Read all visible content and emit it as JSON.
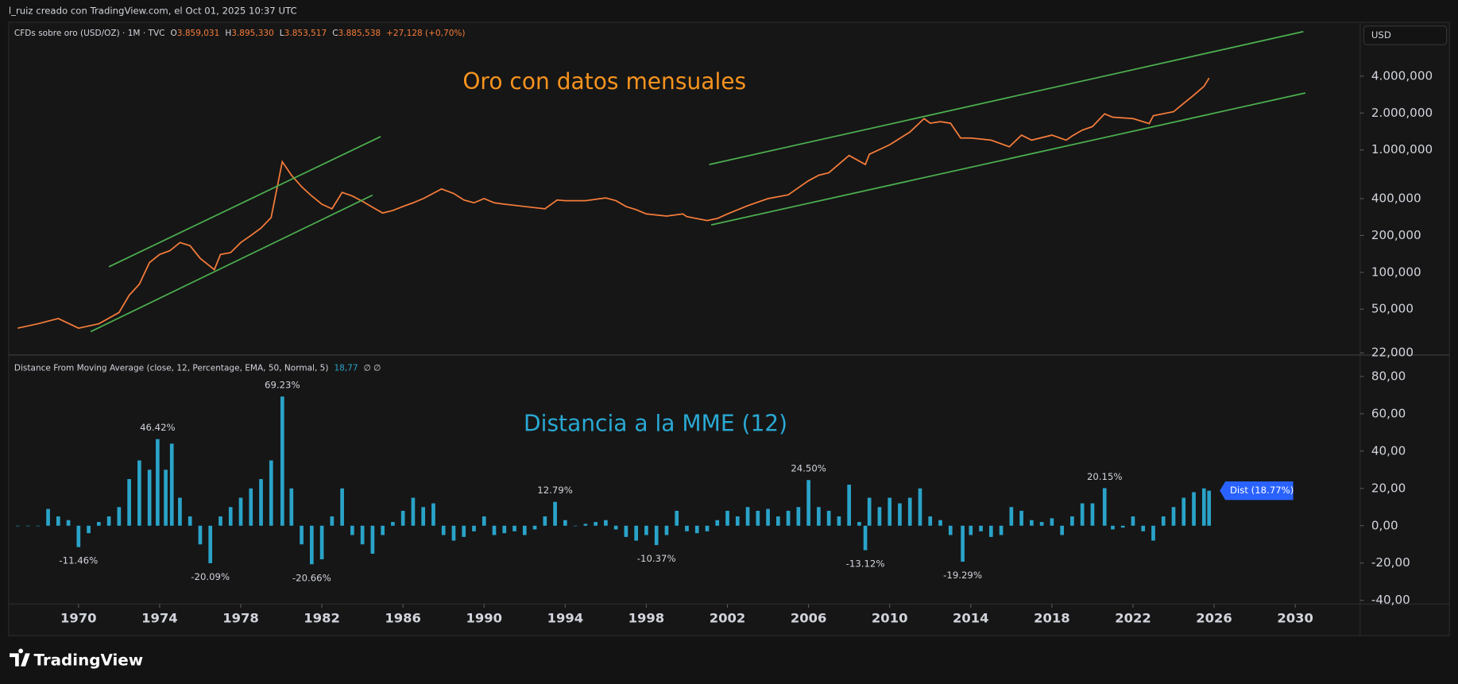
{
  "header": {
    "attribution": "l_ruiz creado con TradingView.com, el Oct 01, 2025 10:37 UTC"
  },
  "footer": {
    "logo": "TradingView"
  },
  "chart_data": [
    {
      "type": "line",
      "title": "Oro con datos mensuales",
      "currency": "USD",
      "log_scale": true,
      "grid": false,
      "legend": {
        "symbol": "CFDs sobre oro (USD/OZ) · 1M · TVC",
        "ohlc": [
          {
            "label": "O",
            "value": "3.859,031"
          },
          {
            "label": "H",
            "value": "3.895,330"
          },
          {
            "label": "L",
            "value": "3.853,517"
          },
          {
            "label": "C",
            "value": "3.885,538"
          }
        ],
        "change": "+27,128 (+0,70%)"
      },
      "xlim": [
        1966.6,
        2033.2
      ],
      "ylim": [
        21.5,
        11400
      ],
      "yticks": [
        {
          "value": 22,
          "label": "22,000"
        },
        {
          "value": 50,
          "label": "50,000"
        },
        {
          "value": 100,
          "label": "100,000"
        },
        {
          "value": 200,
          "label": "200,000"
        },
        {
          "value": 400,
          "label": "400,000"
        },
        {
          "value": 1000,
          "label": "1.000,000"
        },
        {
          "value": 2000,
          "label": "2.000,000"
        },
        {
          "value": 4000,
          "label": "4.000,000"
        }
      ],
      "series": [
        {
          "name": "Oro",
          "color": "#f57c3a",
          "x": [
            1967,
            1968,
            1968.5,
            1969,
            1970,
            1971,
            1972,
            1972.5,
            1973,
            1973.5,
            1974,
            1974.5,
            1975,
            1975.5,
            1976,
            1976.7,
            1977,
            1977.5,
            1978,
            1978.5,
            1979,
            1979.5,
            1980.05,
            1980.5,
            1981,
            1981.5,
            1982,
            1982.5,
            1983,
            1983.5,
            1984,
            1984.5,
            1985,
            1985.5,
            1986,
            1986.5,
            1987,
            1987.9,
            1988.5,
            1989,
            1989.5,
            1990,
            1990.5,
            1991,
            1992,
            1993,
            1993.6,
            1994,
            1995,
            1996,
            1996.5,
            1997,
            1997.5,
            1998,
            1999,
            1999.8,
            2000,
            2001,
            2001.5,
            2002,
            2003,
            2004,
            2005,
            2006,
            2006.5,
            2007,
            2008,
            2008.8,
            2009,
            2010,
            2011,
            2011.7,
            2012,
            2012.5,
            2013,
            2013.5,
            2014,
            2015,
            2015.9,
            2016.5,
            2017,
            2018,
            2018.7,
            2019,
            2019.5,
            2020,
            2020.6,
            2021,
            2022,
            2022.8,
            2023,
            2024,
            2024.5,
            2025,
            2025.5,
            2025.75
          ],
          "values": [
            35,
            38,
            40,
            42,
            35,
            38,
            47,
            65,
            80,
            120,
            140,
            150,
            175,
            165,
            130,
            105,
            140,
            145,
            175,
            200,
            230,
            280,
            800,
            620,
            500,
            420,
            360,
            330,
            450,
            420,
            380,
            340,
            305,
            320,
            345,
            370,
            400,
            480,
            440,
            390,
            370,
            400,
            370,
            360,
            345,
            330,
            390,
            385,
            385,
            405,
            385,
            345,
            325,
            300,
            288,
            300,
            285,
            265,
            275,
            300,
            350,
            400,
            430,
            560,
            620,
            650,
            900,
            760,
            920,
            1100,
            1400,
            1800,
            1650,
            1700,
            1650,
            1250,
            1250,
            1200,
            1060,
            1320,
            1200,
            1320,
            1200,
            1300,
            1450,
            1550,
            1970,
            1850,
            1800,
            1640,
            1900,
            2050,
            2400,
            2800,
            3300,
            3859
          ]
        }
      ],
      "trendlines": {
        "color": "#4caf50",
        "lines": [
          {
            "x": [
              1971.5,
              1984.9
            ],
            "y": [
              111,
              1284
            ]
          },
          {
            "x": [
              1970.6,
              1984.5
            ],
            "y": [
              32.8,
              427
            ]
          },
          {
            "x": [
              2001.1,
              2030.4
            ],
            "y": [
              759,
              9245
            ]
          },
          {
            "x": [
              2001.2,
              2030.5
            ],
            "y": [
              244,
              2917
            ]
          }
        ]
      }
    },
    {
      "type": "bar",
      "title": "Distancia a la MME (12)",
      "indicator": "Distance From Moving Average (close, 12, Percentage, EMA, 50, Normal, 5)",
      "indicator_value": "18,77",
      "indicator_extra": "∅ ∅",
      "last_label": "Dist (18.77%)",
      "xlim": [
        1966.6,
        2033.2
      ],
      "ylim": [
        -42,
        91
      ],
      "xticks": [
        1970,
        1974,
        1978,
        1982,
        1986,
        1990,
        1994,
        1998,
        2002,
        2006,
        2010,
        2014,
        2018,
        2022,
        2026,
        2030
      ],
      "yticks": [
        {
          "value": -40,
          "label": "-40,00"
        },
        {
          "value": -20,
          "label": "-20,00"
        },
        {
          "value": 0,
          "label": "0,00"
        },
        {
          "value": 20,
          "label": "20,00"
        },
        {
          "value": 40,
          "label": "40,00"
        },
        {
          "value": 60,
          "label": "60,00"
        },
        {
          "value": 80,
          "label": "80,00"
        }
      ],
      "series": [
        {
          "name": "Dist",
          "color": "#2aa3c9",
          "x": [
            1967,
            1967.5,
            1968,
            1968.5,
            1969,
            1969.5,
            1970,
            1970.5,
            1971,
            1971.5,
            1972,
            1972.5,
            1973,
            1973.5,
            1973.9,
            1974.3,
            1974.6,
            1975,
            1975.5,
            1976,
            1976.5,
            1977,
            1977.5,
            1978,
            1978.5,
            1979,
            1979.5,
            1980.05,
            1980.5,
            1981,
            1981.5,
            1982,
            1982.5,
            1983,
            1983.5,
            1984,
            1984.5,
            1985,
            1985.5,
            1986,
            1986.5,
            1987,
            1987.5,
            1988,
            1988.5,
            1989,
            1989.5,
            1990,
            1990.5,
            1991,
            1991.5,
            1992,
            1992.5,
            1993,
            1993.5,
            1994,
            1994.5,
            1995,
            1995.5,
            1996,
            1996.5,
            1997,
            1997.5,
            1998,
            1998.5,
            1999,
            1999.5,
            2000,
            2000.5,
            2001,
            2001.5,
            2002,
            2002.5,
            2003,
            2003.5,
            2004,
            2004.5,
            2005,
            2005.5,
            2006,
            2006.5,
            2007,
            2007.5,
            2008,
            2008.5,
            2008.8,
            2009,
            2009.5,
            2010,
            2010.5,
            2011,
            2011.5,
            2012,
            2012.5,
            2013,
            2013.6,
            2014,
            2014.5,
            2015,
            2015.5,
            2016,
            2016.5,
            2017,
            2017.5,
            2018,
            2018.5,
            2019,
            2019.5,
            2020,
            2020.6,
            2021,
            2021.5,
            2022,
            2022.5,
            2023,
            2023.5,
            2024,
            2024.5,
            2025,
            2025.5,
            2025.75
          ],
          "values": [
            0,
            0,
            0,
            9,
            5,
            3,
            -11.46,
            -4,
            2,
            5,
            10,
            25,
            35,
            30,
            46.42,
            30,
            44,
            15,
            5,
            -10,
            -20.09,
            5,
            10,
            15,
            20,
            25,
            35,
            69.23,
            20,
            -10,
            -20.66,
            -18,
            5,
            20,
            -5,
            -10,
            -15,
            -5,
            2,
            8,
            15,
            10,
            12,
            -5,
            -8,
            -6,
            -3,
            5,
            -5,
            -4,
            -3,
            -5,
            -2,
            5,
            12.79,
            3,
            0,
            1,
            2,
            3,
            -2,
            -6,
            -8,
            -5,
            -10.37,
            -5,
            8,
            -3,
            -4,
            -3,
            3,
            8,
            5,
            10,
            8,
            9,
            5,
            8,
            10,
            24.5,
            10,
            8,
            5,
            22,
            2,
            -13.12,
            15,
            10,
            15,
            12,
            15,
            20,
            5,
            3,
            -5,
            -19.29,
            -5,
            -3,
            -6,
            -5,
            10,
            8,
            3,
            2,
            4,
            -5,
            5,
            12,
            12,
            20.15,
            -2,
            -1,
            5,
            -3,
            -8,
            5,
            10,
            15,
            18,
            20,
            18.77
          ]
        }
      ],
      "peak_labels": [
        {
          "x": 1973.9,
          "value": 46.42,
          "label": "46.42%"
        },
        {
          "x": 1970,
          "value": -11.46,
          "label": "-11.46%"
        },
        {
          "x": 1976.5,
          "value": -20.09,
          "label": "-20.09%"
        },
        {
          "x": 1980.05,
          "value": 69.23,
          "label": "69.23%"
        },
        {
          "x": 1981.5,
          "value": -20.66,
          "label": "-20.66%"
        },
        {
          "x": 1993.5,
          "value": 12.79,
          "label": "12.79%"
        },
        {
          "x": 1998.5,
          "value": -10.37,
          "label": "-10.37%"
        },
        {
          "x": 2006,
          "value": 24.5,
          "label": "24.50%"
        },
        {
          "x": 2008.8,
          "value": -13.12,
          "label": "-13.12%"
        },
        {
          "x": 2013.6,
          "value": -19.29,
          "label": "-19.29%"
        },
        {
          "x": 2020.6,
          "value": 20.15,
          "label": "20.15%"
        }
      ]
    }
  ]
}
